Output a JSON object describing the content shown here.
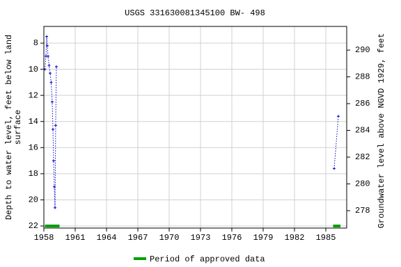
{
  "chart_data": {
    "type": "line",
    "title": "USGS 331630081345100 BW- 498",
    "y_label": [
      "Depth to water level, feet below land",
      "surface"
    ],
    "y2_label": "Groundwater level above NGVD 1929, feet",
    "xlim": [
      1958,
      1987
    ],
    "xticks": [
      1958,
      1961,
      1964,
      1967,
      1970,
      1973,
      1976,
      1979,
      1982,
      1985
    ],
    "ylim": [
      22.16,
      6.72
    ],
    "yticks": [
      8,
      10,
      12,
      14,
      16,
      18,
      20,
      22
    ],
    "y2lim": [
      276.7,
      291.77
    ],
    "y2ticks": [
      278,
      280,
      282,
      284,
      286,
      288,
      290
    ],
    "grid": true,
    "series": [
      {
        "color": "#0000cc",
        "x": [
          1958.1,
          1958.2,
          1958.27,
          1958.33,
          1958.4,
          1958.5,
          1958.6,
          1958.7,
          1958.8,
          1958.87,
          1958.93,
          1959.0,
          1959.07,
          1959.13,
          1959.2
        ],
        "values": [
          10.0,
          9.0,
          7.5,
          8.2,
          9.0,
          9.7,
          10.3,
          11.0,
          12.5,
          14.6,
          17.0,
          19.0,
          20.6,
          14.3,
          9.8
        ]
      },
      {
        "color": "#0000cc",
        "x": [
          1985.8,
          1986.2
        ],
        "values": [
          17.6,
          13.6
        ]
      }
    ],
    "approved_periods": [
      [
        1958.1,
        1959.5
      ],
      [
        1985.7,
        1986.4
      ]
    ],
    "approved_color": "#00a000",
    "legend": "Period of approved data"
  }
}
